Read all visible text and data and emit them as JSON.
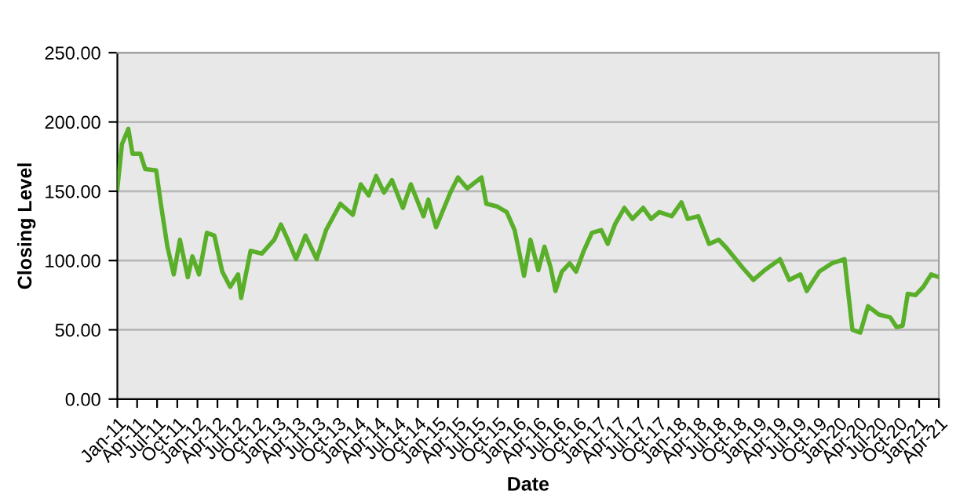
{
  "chart_data": {
    "type": "line",
    "xlabel": "Date",
    "ylabel": "Closing Level",
    "x": [
      "2011-01-01",
      "2011-01-22",
      "2011-02-20",
      "2011-03-11",
      "2011-04-16",
      "2011-05-08",
      "2011-06-27",
      "2011-07-18",
      "2011-08-17",
      "2011-09-15",
      "2011-10-13",
      "2011-11-18",
      "2011-12-09",
      "2012-01-08",
      "2012-02-13",
      "2012-03-18",
      "2012-04-23",
      "2012-05-29",
      "2012-07-04",
      "2012-07-18",
      "2012-08-30",
      "2012-10-20",
      "2012-12-16",
      "2013-01-15",
      "2013-02-13",
      "2013-03-25",
      "2013-05-07",
      "2013-06-27",
      "2013-08-09",
      "2013-10-13",
      "2013-12-09",
      "2014-01-14",
      "2014-02-19",
      "2014-03-25",
      "2014-04-30",
      "2014-06-05",
      "2014-07-25",
      "2014-08-30",
      "2014-10-27",
      "2014-11-18",
      "2014-12-23",
      "2015-02-26",
      "2015-04-02",
      "2015-05-14",
      "2015-07-18",
      "2015-08-09",
      "2015-09-28",
      "2015-11-10",
      "2015-12-16",
      "2016-01-28",
      "2016-02-26",
      "2016-04-02",
      "2016-04-30",
      "2016-05-28",
      "2016-06-19",
      "2016-07-18",
      "2016-08-23",
      "2016-09-21",
      "2016-10-26",
      "2016-12-02",
      "2017-01-14",
      "2017-02-12",
      "2017-03-17",
      "2017-04-29",
      "2017-06-05",
      "2017-07-24",
      "2017-08-29",
      "2017-10-05",
      "2017-12-01",
      "2018-01-14",
      "2018-02-12",
      "2018-04-01",
      "2018-05-20",
      "2018-07-03",
      "2018-08-08",
      "2018-10-19",
      "2018-12-08",
      "2019-01-28",
      "2019-04-08",
      "2019-05-20",
      "2019-07-10",
      "2019-08-08",
      "2019-10-04",
      "2019-12-01",
      "2020-01-27",
      "2020-03-03",
      "2020-04-08",
      "2020-05-13",
      "2020-07-02",
      "2020-08-22",
      "2020-09-20",
      "2020-10-18",
      "2020-11-10",
      "2020-12-15",
      "2021-01-20",
      "2021-02-25",
      "2021-04-01"
    ],
    "series": [
      {
        "color": "#5aaf2a",
        "values": [
          152,
          184,
          195,
          177,
          177,
          166,
          165,
          141,
          110,
          90,
          115,
          88,
          103,
          90,
          120,
          118,
          92,
          81,
          90,
          73,
          107,
          105,
          115,
          126,
          116,
          101,
          118,
          101,
          122,
          141,
          133,
          155,
          147,
          161,
          149,
          158,
          138,
          155,
          132,
          144,
          124,
          149,
          160,
          152,
          160,
          141,
          139,
          135,
          122,
          89,
          115,
          93,
          110,
          95,
          78,
          92,
          98,
          92,
          107,
          120,
          122,
          112,
          126,
          138,
          130,
          138,
          130,
          135,
          132,
          142,
          130,
          132,
          112,
          115,
          109,
          95,
          86,
          93,
          101,
          86,
          90,
          78,
          92,
          98,
          101,
          50,
          48,
          67,
          61,
          59,
          52,
          53,
          76,
          75,
          81,
          90,
          88
        ]
      }
    ],
    "xlim": [
      "2011-01-01",
      "2021-04-01"
    ],
    "xticks": [
      {
        "value": "2011-01-01",
        "label": "Jan-11"
      },
      {
        "value": "2011-04-01",
        "label": "Apr-11"
      },
      {
        "value": "2011-07-01",
        "label": "Jul-11"
      },
      {
        "value": "2011-10-01",
        "label": "Oct-11"
      },
      {
        "value": "2012-01-01",
        "label": "Jan-12"
      },
      {
        "value": "2012-04-01",
        "label": "Apr-12"
      },
      {
        "value": "2012-07-01",
        "label": "Jul-12"
      },
      {
        "value": "2012-10-01",
        "label": "Oct-12"
      },
      {
        "value": "2013-01-01",
        "label": "Jan-13"
      },
      {
        "value": "2013-04-01",
        "label": "Apr-13"
      },
      {
        "value": "2013-07-01",
        "label": "Jul-13"
      },
      {
        "value": "2013-10-01",
        "label": "Oct-13"
      },
      {
        "value": "2014-01-01",
        "label": "Jan-14"
      },
      {
        "value": "2014-04-01",
        "label": "Apr-14"
      },
      {
        "value": "2014-07-01",
        "label": "Jul-14"
      },
      {
        "value": "2014-10-01",
        "label": "Oct-14"
      },
      {
        "value": "2015-01-01",
        "label": "Jan-15"
      },
      {
        "value": "2015-04-01",
        "label": "Apr-15"
      },
      {
        "value": "2015-07-01",
        "label": "Jul-15"
      },
      {
        "value": "2015-10-01",
        "label": "Oct-15"
      },
      {
        "value": "2016-01-01",
        "label": "Jan-16"
      },
      {
        "value": "2016-04-01",
        "label": "Apr-16"
      },
      {
        "value": "2016-07-01",
        "label": "Jul-16"
      },
      {
        "value": "2016-10-01",
        "label": "Oct-16"
      },
      {
        "value": "2017-01-01",
        "label": "Jan-17"
      },
      {
        "value": "2017-04-01",
        "label": "Apr-17"
      },
      {
        "value": "2017-07-01",
        "label": "Jul-17"
      },
      {
        "value": "2017-10-01",
        "label": "Oct-17"
      },
      {
        "value": "2018-01-01",
        "label": "Jan-18"
      },
      {
        "value": "2018-04-01",
        "label": "Apr-18"
      },
      {
        "value": "2018-07-01",
        "label": "Jul-18"
      },
      {
        "value": "2018-10-01",
        "label": "Oct-18"
      },
      {
        "value": "2019-01-01",
        "label": "Jan-19"
      },
      {
        "value": "2019-04-01",
        "label": "Apr-19"
      },
      {
        "value": "2019-07-01",
        "label": "Jul-19"
      },
      {
        "value": "2019-10-01",
        "label": "Oct-19"
      },
      {
        "value": "2020-01-01",
        "label": "Jan-20"
      },
      {
        "value": "2020-04-01",
        "label": "Apr-20"
      },
      {
        "value": "2020-07-01",
        "label": "Jul-20"
      },
      {
        "value": "2020-10-01",
        "label": "Oct-20"
      },
      {
        "value": "2021-01-01",
        "label": "Jan-21"
      },
      {
        "value": "2021-04-01",
        "label": "Apr-21"
      }
    ],
    "ylim": [
      0,
      250
    ],
    "yticks": [
      {
        "value": 0,
        "label": "0.00"
      },
      {
        "value": 50,
        "label": "50.00"
      },
      {
        "value": 100,
        "label": "100.00"
      },
      {
        "value": 150,
        "label": "150.00"
      },
      {
        "value": 200,
        "label": "200.00"
      },
      {
        "value": 250,
        "label": "250.00"
      }
    ],
    "grid": "y",
    "marker": "none",
    "line_style": "solid"
  }
}
